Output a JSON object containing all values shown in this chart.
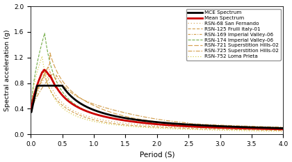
{
  "xlabel": "Period (S)",
  "ylabel": "Spectral acceleration (g)",
  "xlim": [
    0,
    4
  ],
  "ylim": [
    0,
    2
  ],
  "yticks": [
    0,
    0.4,
    0.8,
    1.2,
    1.6,
    2.0
  ],
  "xticks": [
    0,
    0.5,
    1,
    1.5,
    2,
    2.5,
    3,
    3.5,
    4
  ],
  "c_mce": "#000000",
  "c_mean": "#cc0000",
  "c_tan": "#d4a050",
  "c_green": "#7ab050",
  "c_yellow": "#d4c840",
  "c_olive": "#b8a040",
  "background_color": "#ffffff",
  "figsize": [
    4.2,
    2.33
  ],
  "dpi": 100
}
